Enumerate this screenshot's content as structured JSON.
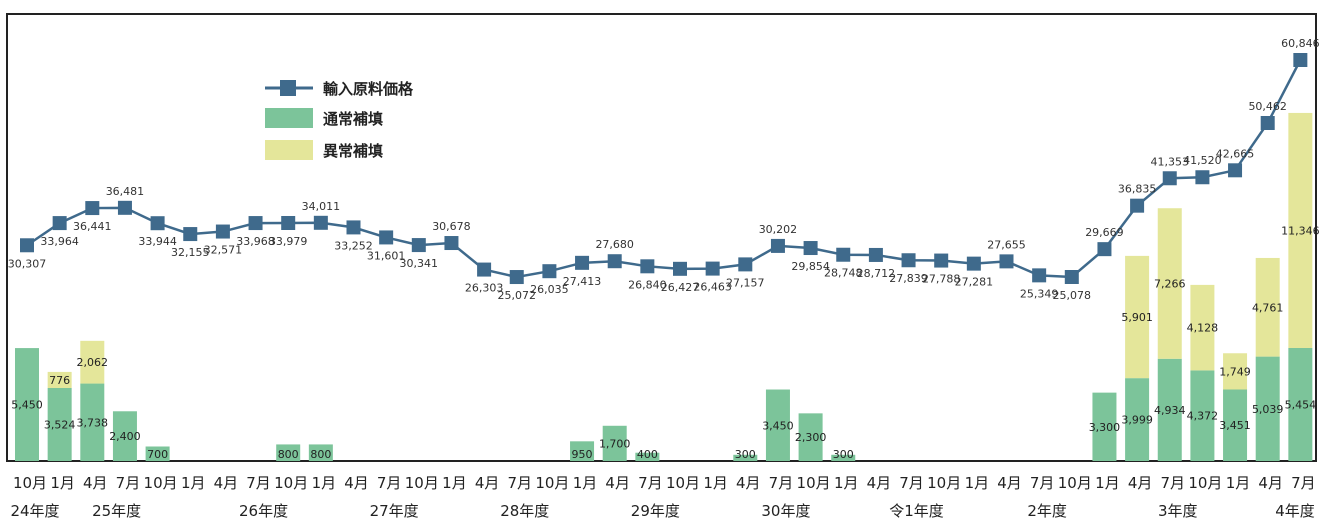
{
  "chart_data": {
    "type": "bar",
    "title": "",
    "xlabel": "",
    "ylabel": "",
    "categories": [
      "10月",
      "1月",
      "4月",
      "7月",
      "10月",
      "1月",
      "4月",
      "7月",
      "10月",
      "1月",
      "4月",
      "7月",
      "10月",
      "1月",
      "4月",
      "7月",
      "10月",
      "1月",
      "4月",
      "7月",
      "10月",
      "1月",
      "4月",
      "7月",
      "10月",
      "1月",
      "4月",
      "7月",
      "10月",
      "1月",
      "4月",
      "7月",
      "10月",
      "1月",
      "4月",
      "7月",
      "10月",
      "1月",
      "4月",
      "7月"
    ],
    "fiscal_years": [
      {
        "label": "24年度",
        "index": 0
      },
      {
        "label": "25年度",
        "index": 2.5
      },
      {
        "label": "26年度",
        "index": 7
      },
      {
        "label": "27年度",
        "index": 11
      },
      {
        "label": "28年度",
        "index": 15
      },
      {
        "label": "29年度",
        "index": 19
      },
      {
        "label": "30年度",
        "index": 23
      },
      {
        "label": "令1年度",
        "index": 27
      },
      {
        "label": "2年度",
        "index": 31
      },
      {
        "label": "3年度",
        "index": 35
      },
      {
        "label": "4年度",
        "index": 39
      }
    ],
    "series": [
      {
        "name": "輸入原料価格",
        "kind": "line",
        "color": "#3f6a8c",
        "values": [
          30307,
          33964,
          36441,
          36481,
          33944,
          32155,
          32571,
          33968,
          33979,
          34011,
          33252,
          31601,
          30341,
          30678,
          26303,
          25072,
          26035,
          27413,
          27680,
          26840,
          26427,
          26463,
          27157,
          30202,
          29854,
          28748,
          28712,
          27839,
          27788,
          27281,
          27655,
          25349,
          25078,
          29669,
          36835,
          41353,
          41520,
          42665,
          50462,
          60846
        ],
        "labels": [
          "30,307",
          "33,964",
          "36,441",
          "36,481",
          "33,944",
          "32,155",
          "32,571",
          "33,968",
          "33,979",
          "34,011",
          "33,252",
          "31,601",
          "30,341",
          "30,678",
          "26,303",
          "25,072",
          "26,035",
          "27,413",
          "27,680",
          "26,840",
          "26,427",
          "26,463",
          "27,157",
          "30,202",
          "29,854",
          "28,748",
          "28,712",
          "27,839",
          "27,788",
          "27,281",
          "27,655",
          "25,349",
          "25,078",
          "29,669",
          "36,835",
          "41,353",
          "41,520",
          "42,665",
          "50,462",
          "60,846"
        ]
      },
      {
        "name": "通常補填",
        "kind": "bar",
        "color": "#7cc49a",
        "values": [
          5450,
          3524,
          3738,
          2400,
          700,
          0,
          0,
          0,
          800,
          800,
          0,
          0,
          0,
          0,
          0,
          0,
          0,
          950,
          1700,
          400,
          0,
          0,
          300,
          3450,
          2300,
          300,
          0,
          0,
          0,
          0,
          0,
          0,
          0,
          3300,
          3999,
          4934,
          4372,
          3451,
          5039,
          5454
        ],
        "labels": [
          "5,450",
          "3,524",
          "3,738",
          "2,400",
          "700",
          "",
          "",
          "",
          "800",
          "800",
          "",
          "",
          "",
          "",
          "",
          "",
          "",
          "950",
          "1,700",
          "400",
          "",
          "",
          "300",
          "3,450",
          "2,300",
          "300",
          "",
          "",
          "",
          "",
          "",
          "",
          "",
          "3,300",
          "3,999",
          "4,934",
          "4,372",
          "3,451",
          "5,039",
          "5,454"
        ]
      },
      {
        "name": "異常補填",
        "kind": "bar",
        "color": "#e4e69a",
        "values": [
          0,
          776,
          2062,
          0,
          0,
          0,
          0,
          0,
          0,
          0,
          0,
          0,
          0,
          0,
          0,
          0,
          0,
          0,
          0,
          0,
          0,
          0,
          0,
          0,
          0,
          0,
          0,
          0,
          0,
          0,
          0,
          0,
          0,
          0,
          5901,
          7266,
          4128,
          1749,
          4761,
          11346
        ],
        "labels": [
          "",
          "776",
          "2,062",
          "",
          "",
          "",
          "",
          "",
          "",
          "",
          "",
          "",
          "",
          "",
          "",
          "",
          "",
          "",
          "",
          "",
          "",
          "",
          "",
          "",
          "",
          "",
          "",
          "",
          "",
          "",
          "",
          "",
          "",
          "",
          "5,901",
          "7,266",
          "4,128",
          "1,749",
          "4,761",
          "11,346"
        ]
      }
    ],
    "legend": {
      "position": "top-left",
      "entries": [
        "輸入原料価格",
        "通常補填",
        "異常補填"
      ]
    },
    "grid": false
  }
}
